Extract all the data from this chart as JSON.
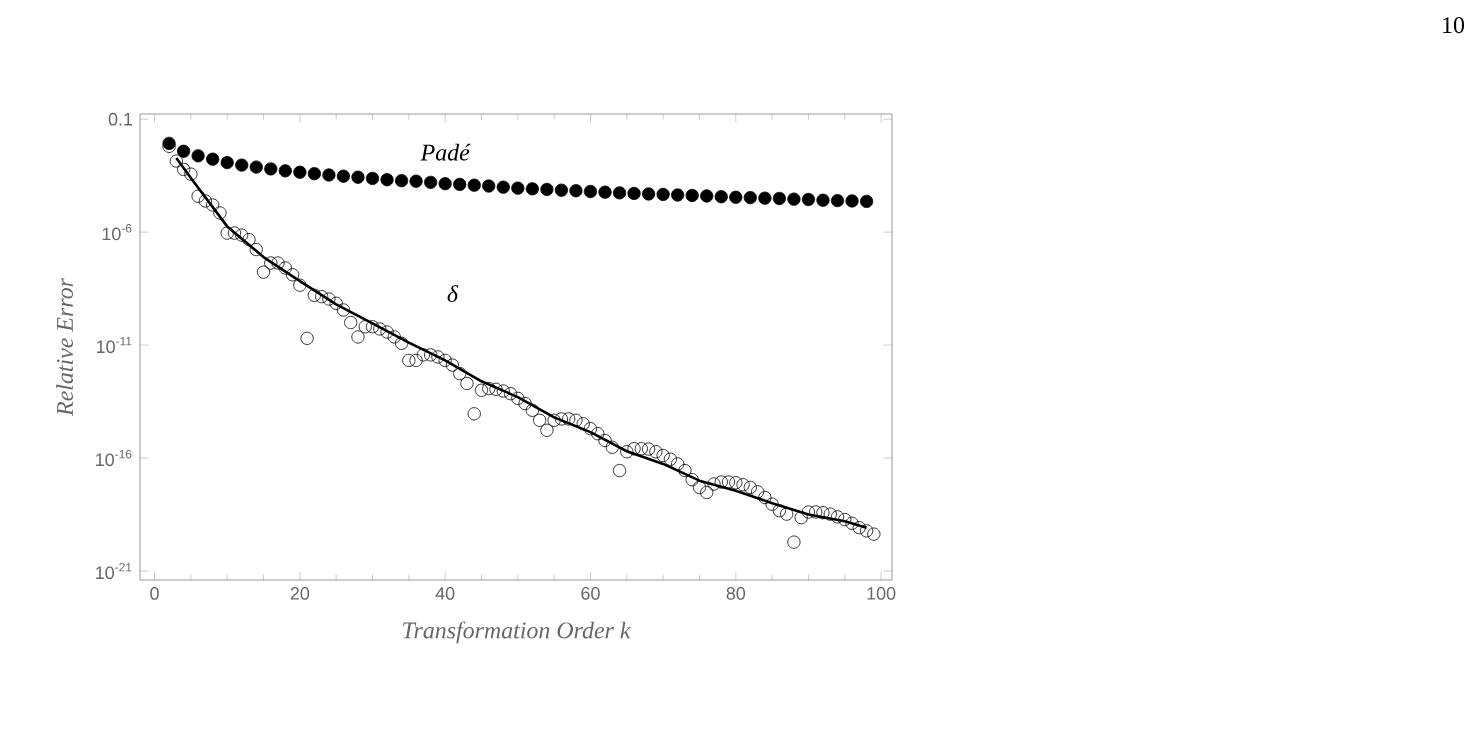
{
  "chart_data": {
    "type": "scatter",
    "xlabel": "Transformation Order k",
    "ylabel": "Relative Error",
    "log": "y",
    "xlim": [
      -2,
      101.5
    ],
    "ylim": [
      4e-22,
      0.17
    ],
    "xticks": [
      0,
      20,
      40,
      60,
      80,
      100
    ],
    "yticks": [
      {
        "value": 0.1,
        "label": "0.1"
      },
      {
        "value": 1e-06,
        "label": "10$^{-6}$"
      },
      {
        "value": 1e-11,
        "label": "10$^{-11}$"
      },
      {
        "value": 1e-16,
        "label": "10$^{-16}$"
      },
      {
        "value": 1e-21,
        "label": "10$^{-21}$"
      }
    ],
    "annotations": [
      "10"
    ],
    "series": [
      {
        "name": "Padé",
        "color": "#000000",
        "x": [
          2,
          4,
          6,
          8,
          10,
          12,
          14,
          16,
          18,
          20,
          22,
          24,
          26,
          28,
          30,
          32,
          34,
          36,
          38,
          40,
          42,
          44,
          46,
          48,
          50,
          52,
          54,
          56,
          58,
          60,
          62,
          64,
          66,
          68,
          70,
          72,
          74,
          76,
          78,
          80,
          82,
          84,
          86,
          88,
          90,
          92,
          94,
          96,
          98
        ],
        "values": [
          0.0085,
          0.0038,
          0.0024,
          0.0017,
          0.0012,
          0.00093,
          0.00076,
          0.00063,
          0.00052,
          0.00045,
          0.00039,
          0.00034,
          0.0003,
          0.00027,
          0.00024,
          0.00021,
          0.00019,
          0.00018,
          0.00016,
          0.00014,
          0.00013,
          0.00012,
          0.00011,
          9.8e-05,
          8.9e-05,
          8.3e-05,
          7.8e-05,
          7.2e-05,
          6.8e-05,
          6.3e-05,
          5.9e-05,
          5.5e-05,
          5.2e-05,
          4.9e-05,
          4.7e-05,
          4.4e-05,
          4.2e-05,
          4e-05,
          3.7e-05,
          3.5e-05,
          3.4e-05,
          3.2e-05,
          3.1e-05,
          2.9e-05,
          2.8e-05,
          2.6e-05,
          2.5e-05,
          2.4e-05,
          2.3e-05
        ]
      },
      {
        "type": "line",
        "color": "#000000",
        "x": [
          3,
          5,
          10,
          15,
          20,
          25,
          30,
          35,
          40,
          45,
          50,
          55,
          60,
          65,
          70,
          75,
          80,
          85,
          90,
          95,
          98
        ],
        "values": [
          0.0019,
          0.00025,
          1.8e-06,
          7.9e-08,
          6.8e-09,
          6.3e-10,
          9.1e-11,
          1.3e-11,
          2.1e-12,
          2.5e-13,
          5e-14,
          6.3e-15,
          1.4e-15,
          2e-16,
          5.5e-17,
          1e-17,
          3.6e-18,
          1e-18,
          3.2e-19,
          1.6e-19,
          8.3e-20
        ]
      },
      {
        "name": "δ",
        "marker": "circle",
        "color": "#000000",
        "x": [
          2,
          3,
          4,
          5,
          6,
          7,
          8,
          9,
          10,
          11,
          12,
          13,
          14,
          15,
          16,
          17,
          18,
          19,
          20,
          21,
          22,
          23,
          24,
          25,
          26,
          27,
          28,
          29,
          30,
          31,
          32,
          33,
          34,
          35,
          36,
          37,
          38,
          39,
          40,
          41,
          42,
          43,
          44,
          45,
          46,
          47,
          48,
          49,
          50,
          51,
          52,
          53,
          54,
          55,
          56,
          57,
          58,
          59,
          60,
          61,
          62,
          63,
          64,
          65,
          66,
          67,
          68,
          69,
          70,
          71,
          72,
          73,
          74,
          75,
          76,
          77,
          78,
          79,
          80,
          81,
          82,
          83,
          84,
          85,
          86,
          87,
          88,
          89,
          90,
          91,
          92,
          93,
          94,
          95,
          96,
          97,
          98,
          99
        ],
        "values": [
          0.0063,
          0.0014,
          0.0006,
          0.00037,
          3.9e-05,
          2.4e-05,
          1.6e-05,
          7.1e-06,
          9.1e-07,
          9.1e-07,
          7.4e-07,
          4.7e-07,
          1.7e-07,
          1.7e-08,
          4.3e-08,
          4.3e-08,
          2.6e-08,
          1.3e-08,
          4.5e-09,
          2e-11,
          1.6e-09,
          1.4e-09,
          1.1e-09,
          7.1e-10,
          3.6e-10,
          1e-10,
          2.3e-11,
          6.5e-11,
          6.5e-11,
          5.2e-11,
          3.8e-11,
          2.3e-11,
          1.2e-11,
          2.1e-12,
          2.1e-12,
          3.7e-12,
          3.7e-12,
          3e-12,
          2.1e-12,
          1.3e-12,
          5.5e-13,
          2e-13,
          9.1e-15,
          1e-13,
          1.2e-13,
          1.1e-13,
          9.3e-14,
          7.1e-14,
          4.4e-14,
          2.6e-14,
          1.3e-14,
          4.7e-15,
          1.7e-15,
          4.7e-15,
          5.4e-15,
          5.4e-15,
          4.7e-15,
          3.3e-15,
          2e-15,
          1.2e-15,
          6e-16,
          3e-16,
          2.8e-17,
          1.9e-16,
          2.6e-16,
          2.6e-16,
          2.5e-16,
          1.9e-16,
          1.3e-16,
          8.9e-17,
          5.5e-17,
          2.8e-17,
          1.1e-17,
          5e-18,
          3e-18,
          7.1e-18,
          8.7e-18,
          8.7e-18,
          8.1e-18,
          6.6e-18,
          5e-18,
          3.2e-18,
          1.8e-18,
          9.1e-19,
          4.7e-19,
          3.3e-19,
          1.9e-20,
          2.3e-19,
          4.1e-19,
          4.1e-19,
          3.8e-19,
          3.3e-19,
          2.5e-19,
          1.9e-19,
          1.3e-19,
          8.3e-20,
          6e-20,
          4.3e-20
        ]
      }
    ]
  }
}
